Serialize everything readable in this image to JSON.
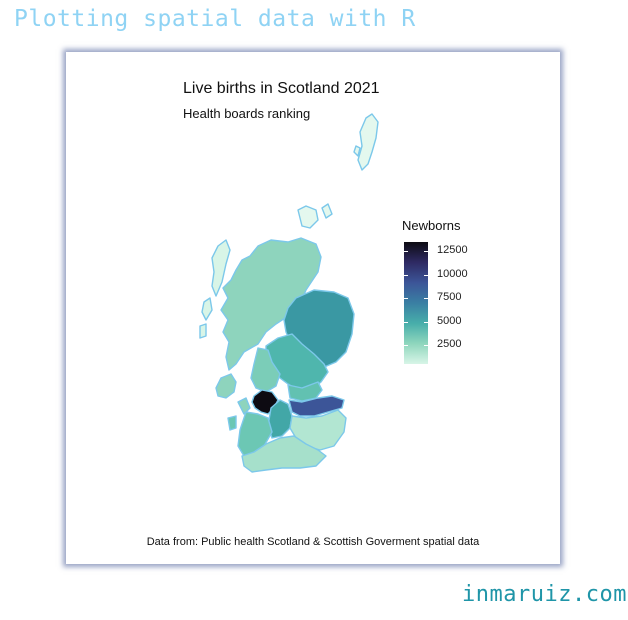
{
  "page": {
    "header": "Plotting spatial data with R",
    "footer": "inmaruiz.com"
  },
  "plot": {
    "title": "Live births in Scotland 2021",
    "subtitle": "Health boards ranking",
    "caption": "Data from: Public health Scotland & Scottish Goverment spatial data"
  },
  "legend": {
    "title": "Newborns",
    "ticks": [
      {
        "value": 2500,
        "label": "2500"
      },
      {
        "value": 5000,
        "label": "5000"
      },
      {
        "value": 7500,
        "label": "7500"
      },
      {
        "value": 10000,
        "label": "10000"
      },
      {
        "value": 12500,
        "label": "12500"
      }
    ],
    "range": [
      500,
      13500
    ],
    "palette": [
      "#d8f5e7",
      "#8fd6bd",
      "#47aeaa",
      "#3a7fa3",
      "#3c5598",
      "#2e2a63",
      "#0d0b12"
    ]
  },
  "map": {
    "outline_color": "#7cc8ea",
    "regions": [
      {
        "name": "Highland",
        "color": "#8ed4bd"
      },
      {
        "name": "Grampian",
        "color": "#3a98a3"
      },
      {
        "name": "Tayside",
        "color": "#4fb6ad"
      },
      {
        "name": "Forth Valley",
        "color": "#7bcdb8"
      },
      {
        "name": "Fife",
        "color": "#62c1b1"
      },
      {
        "name": "Lothian",
        "color": "#3c5598"
      },
      {
        "name": "Greater Glasgow and Clyde",
        "color": "#0d0b12"
      },
      {
        "name": "Lanarkshire",
        "color": "#42a7a7"
      },
      {
        "name": "Ayrshire and Arran",
        "color": "#6cc7b4"
      },
      {
        "name": "Borders",
        "color": "#b2e6d2"
      },
      {
        "name": "Dumfries and Galloway",
        "color": "#a6e0cb"
      },
      {
        "name": "Western Isles",
        "color": "#d8f5e7"
      },
      {
        "name": "Orkney",
        "color": "#e4f8ee"
      },
      {
        "name": "Shetland",
        "color": "#e4f8ee"
      }
    ]
  }
}
